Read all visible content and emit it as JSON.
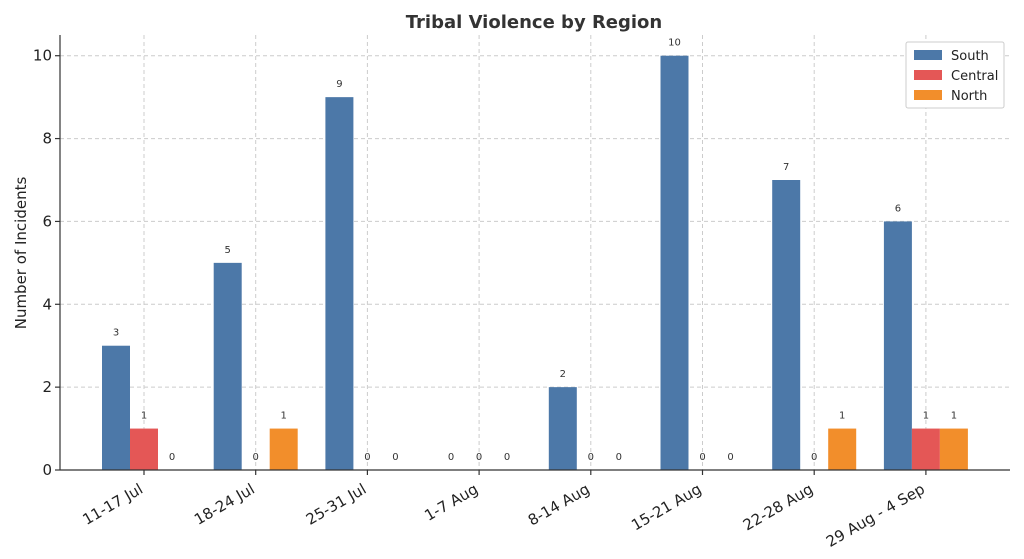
{
  "chart_data": {
    "type": "bar",
    "title": "Tribal Violence by Region",
    "xlabel": "",
    "ylabel": "Number of Incidents",
    "ylim": [
      0,
      10.5
    ],
    "yticks": [
      0,
      2,
      4,
      6,
      8,
      10
    ],
    "grid": true,
    "legend_position": "top-right",
    "categories": [
      "11-17 Jul",
      "18-24 Jul",
      "25-31 Jul",
      "1-7 Aug",
      "8-14 Aug",
      "15-21 Aug",
      "22-28 Aug",
      "29 Aug - 4 Sep"
    ],
    "series": [
      {
        "name": "South",
        "color": "#4c78a8",
        "values": [
          3,
          5,
          9,
          0,
          2,
          10,
          7,
          6
        ]
      },
      {
        "name": "Central",
        "color": "#e45756",
        "values": [
          1,
          0,
          0,
          0,
          0,
          0,
          0,
          1
        ]
      },
      {
        "name": "North",
        "color": "#f28e2b",
        "values": [
          0,
          1,
          0,
          0,
          0,
          0,
          1,
          1
        ]
      }
    ]
  }
}
